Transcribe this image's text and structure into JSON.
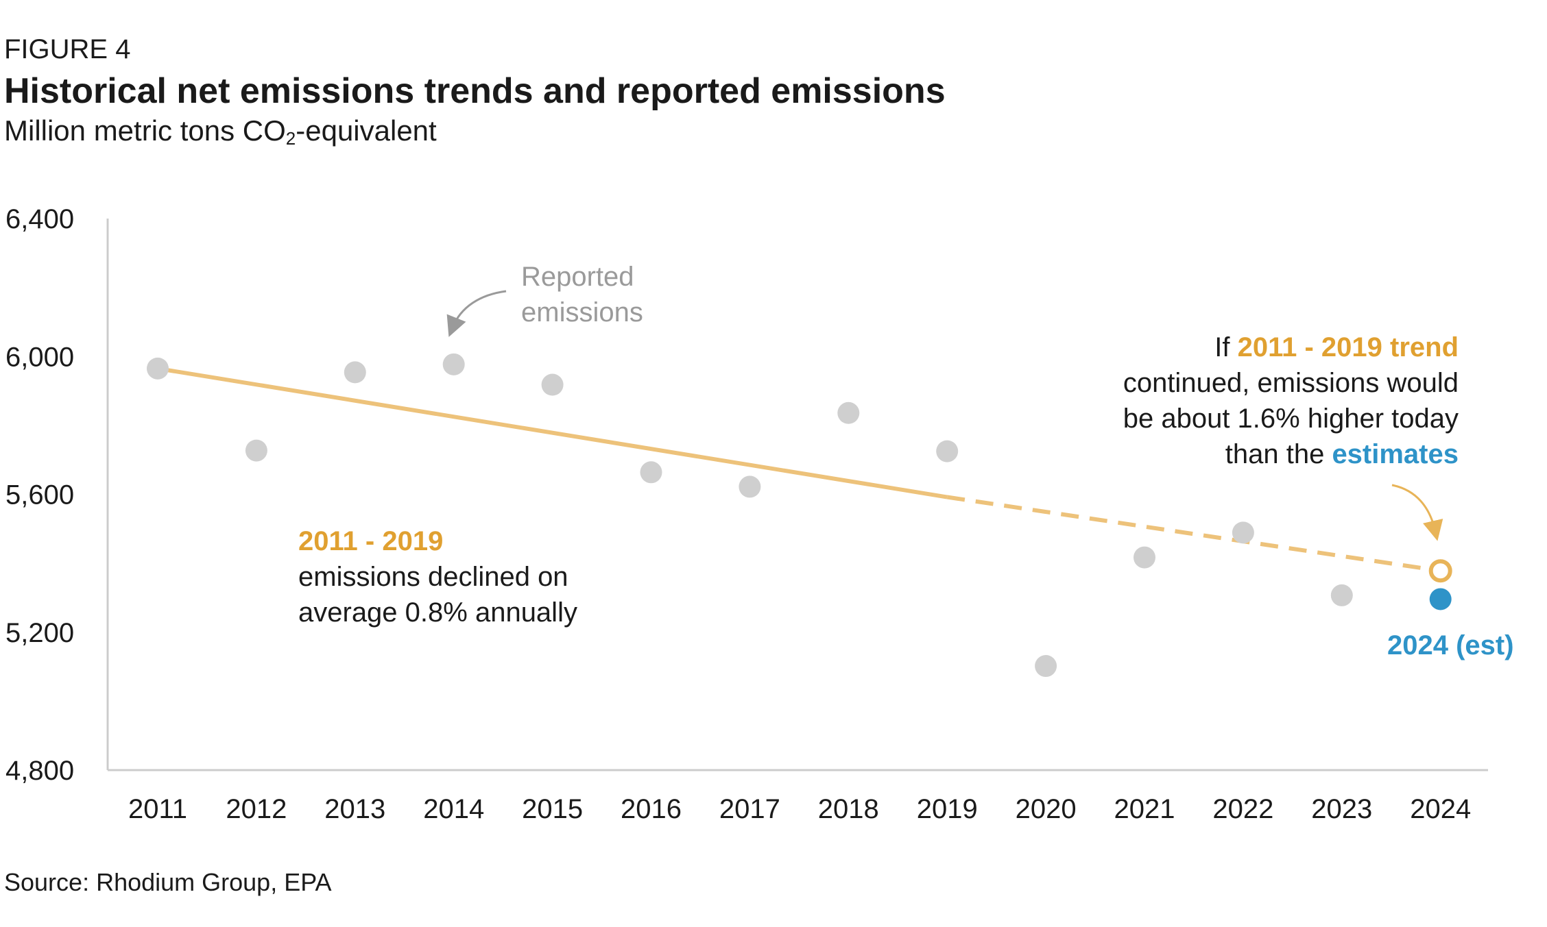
{
  "figure": {
    "label": "FIGURE 4",
    "title": "Historical net emissions trends and reported emissions",
    "subtitle_pre": "Million metric tons CO",
    "subtitle_sub": "2",
    "subtitle_post": "-equivalent",
    "source": "Source: Rhodium Group, EPA"
  },
  "annotations": {
    "reported_line1": "Reported",
    "reported_line2": "emissions",
    "left_highlight": "2011 - 2019",
    "left_line2": "emissions declined on",
    "left_line3": "average 0.8% annually",
    "right_if": "If ",
    "right_highlight": "2011 - 2019 trend",
    "right_line2": "continued, emissions would",
    "right_line3": "be about 1.6% higher today",
    "right_line4_pre": "than the ",
    "right_line4_highlight": "estimates",
    "est_label": "2024 (est)"
  },
  "colors": {
    "trend": "#edc27a",
    "reported_points": "#cfcfcf",
    "estimate": "#2e93c8",
    "axis": "#cccccc",
    "arrow_gray": "#9a9a9a",
    "arrow_gold": "#e8b458"
  },
  "chart_data": {
    "type": "scatter",
    "title": "Historical net emissions trends and reported emissions",
    "ylabel": "Million metric tons CO2-equivalent",
    "ylim": [
      4800,
      6400
    ],
    "yticks": [
      6400,
      6000,
      5600,
      5200,
      4800
    ],
    "ytick_labels": [
      "6,400",
      "6,000",
      "5,600",
      "5,200",
      "4,800"
    ],
    "x": [
      2011,
      2012,
      2013,
      2014,
      2015,
      2016,
      2017,
      2018,
      2019,
      2020,
      2021,
      2022,
      2023,
      2024
    ],
    "xtick_labels": [
      "2011",
      "2012",
      "2013",
      "2014",
      "2015",
      "2016",
      "2017",
      "2018",
      "2019",
      "2020",
      "2021",
      "2022",
      "2023",
      "2024"
    ],
    "series": [
      {
        "name": "Reported emissions",
        "kind": "points",
        "x": [
          2011,
          2012,
          2013,
          2014,
          2015,
          2016,
          2017,
          2018,
          2019,
          2020,
          2021,
          2022,
          2023
        ],
        "values": [
          5965,
          5727,
          5954,
          5977,
          5918,
          5664,
          5622,
          5836,
          5725,
          5102,
          5417,
          5489,
          5307
        ]
      },
      {
        "name": "2024 (est)",
        "kind": "estimate",
        "x": [
          2024
        ],
        "values": [
          5296
        ]
      },
      {
        "name": "2011 - 2019 trend",
        "kind": "trend-solid",
        "x": [
          2011,
          2019
        ],
        "values": [
          5965,
          5592
        ]
      },
      {
        "name": "2011 - 2019 trend",
        "kind": "trend-dashed",
        "x": [
          2019,
          2024
        ],
        "values": [
          5592,
          5378
        ]
      },
      {
        "name": "2011 - 2019 trend",
        "kind": "trend-endpoint",
        "x": [
          2024
        ],
        "values": [
          5378
        ]
      }
    ],
    "grid": false,
    "legend": "none"
  }
}
